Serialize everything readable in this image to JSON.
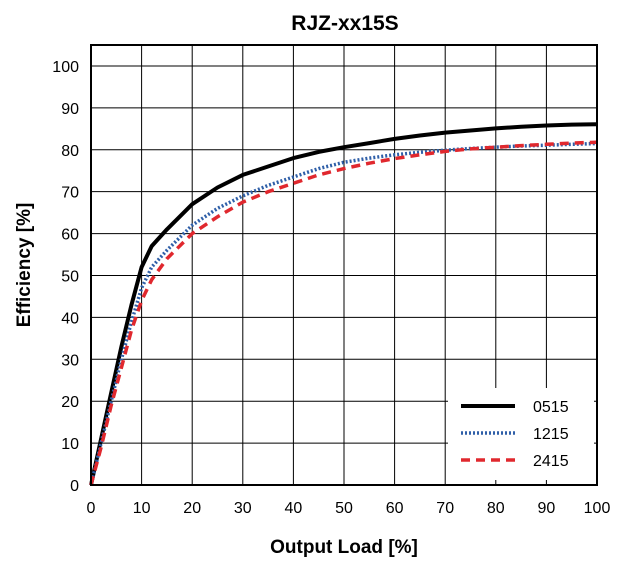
{
  "chart_data": {
    "type": "line",
    "title": "RJZ-xx15S",
    "xlabel": "Output Load [%]",
    "ylabel": "Efficiency [%]",
    "xlim": [
      0,
      100
    ],
    "ylim": [
      0,
      105
    ],
    "xticks": [
      0,
      10,
      20,
      30,
      40,
      50,
      60,
      70,
      80,
      90,
      100
    ],
    "yticks": [
      0,
      10,
      20,
      30,
      40,
      50,
      60,
      70,
      80,
      90,
      100
    ],
    "grid": true,
    "legend_position": "bottom-right",
    "series": [
      {
        "name": "0515",
        "color": "#000000",
        "style": "solid",
        "x": [
          0,
          2,
          4,
          6,
          8,
          10,
          12,
          15,
          20,
          25,
          30,
          35,
          40,
          45,
          50,
          55,
          60,
          65,
          70,
          75,
          80,
          85,
          90,
          95,
          100
        ],
        "y": [
          0,
          11,
          22,
          33,
          43,
          52,
          57,
          61,
          67,
          71,
          74,
          76,
          78,
          79.5,
          80.6,
          81.6,
          82.6,
          83.4,
          84.1,
          84.6,
          85.1,
          85.5,
          85.8,
          86,
          86.1
        ]
      },
      {
        "name": "1215",
        "color": "#2f5fa8",
        "style": "dotted",
        "x": [
          0,
          2,
          4,
          6,
          8,
          10,
          12,
          15,
          20,
          25,
          30,
          35,
          40,
          45,
          50,
          55,
          60,
          65,
          70,
          75,
          80,
          85,
          90,
          95,
          100
        ],
        "y": [
          0,
          10,
          20,
          30,
          39,
          47,
          52,
          56,
          62,
          66,
          69,
          71.5,
          73.5,
          75.5,
          77,
          78,
          78.8,
          79.4,
          79.9,
          80.3,
          80.6,
          80.9,
          81.1,
          81.3,
          81.5
        ]
      },
      {
        "name": "2415",
        "color": "#e0282e",
        "style": "dashed",
        "x": [
          0,
          2,
          4,
          6,
          8,
          10,
          12,
          15,
          20,
          25,
          30,
          35,
          40,
          45,
          50,
          55,
          60,
          65,
          70,
          75,
          80,
          85,
          90,
          95,
          100
        ],
        "y": [
          0,
          9,
          19,
          28,
          37,
          44,
          49,
          54,
          60,
          64,
          67.5,
          70,
          72,
          74,
          75.5,
          76.8,
          77.9,
          78.8,
          79.6,
          80.2,
          80.6,
          81,
          81.3,
          81.6,
          81.8
        ]
      }
    ]
  }
}
